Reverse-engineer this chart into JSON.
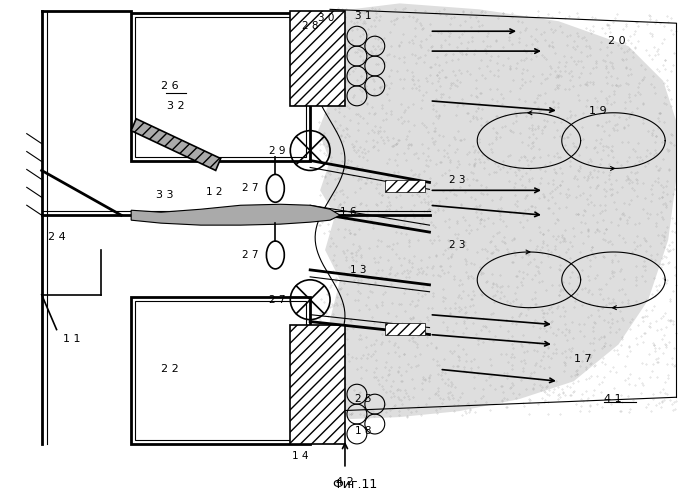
{
  "title": "Фиг.11",
  "bg_color": "#ffffff",
  "line_color": "#000000",
  "stipple_color": "#aaaaaa",
  "flame_fill": "#cccccc"
}
